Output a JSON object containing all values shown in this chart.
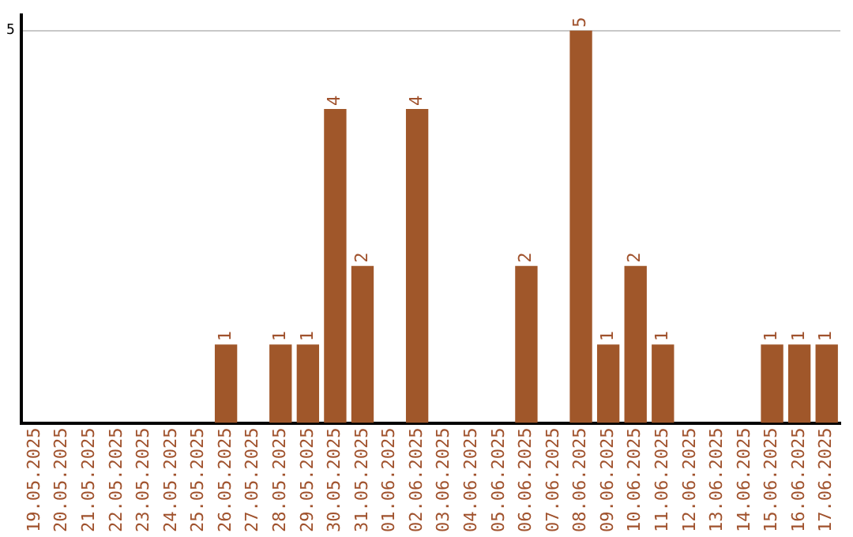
{
  "chart_data": {
    "type": "bar",
    "categories": [
      "19.05.2025",
      "20.05.2025",
      "21.05.2025",
      "22.05.2025",
      "23.05.2025",
      "24.05.2025",
      "25.05.2025",
      "26.05.2025",
      "27.05.2025",
      "28.05.2025",
      "29.05.2025",
      "30.05.2025",
      "31.05.2025",
      "01.06.2025",
      "02.06.2025",
      "03.06.2025",
      "04.06.2025",
      "05.06.2025",
      "06.06.2025",
      "07.06.2025",
      "08.06.2025",
      "09.06.2025",
      "10.06.2025",
      "11.06.2025",
      "12.06.2025",
      "13.06.2025",
      "14.06.2025",
      "15.06.2025",
      "16.06.2025",
      "17.06.2025"
    ],
    "values": [
      0,
      0,
      0,
      0,
      0,
      0,
      0,
      1,
      0,
      1,
      1,
      4,
      2,
      0,
      4,
      0,
      0,
      0,
      2,
      0,
      5,
      1,
      2,
      1,
      0,
      0,
      0,
      1,
      1,
      1
    ],
    "value_labels": [
      null,
      null,
      null,
      null,
      null,
      null,
      null,
      "1",
      null,
      "1",
      "1",
      "4",
      "2",
      null,
      "4",
      null,
      null,
      null,
      "2",
      null,
      "5",
      "1",
      "2",
      "1",
      null,
      null,
      null,
      "1",
      "1",
      "1"
    ],
    "color": "#a0572a",
    "ylim": [
      0,
      5.2
    ],
    "yticks": [
      5
    ],
    "grid": "y",
    "legend": false
  }
}
